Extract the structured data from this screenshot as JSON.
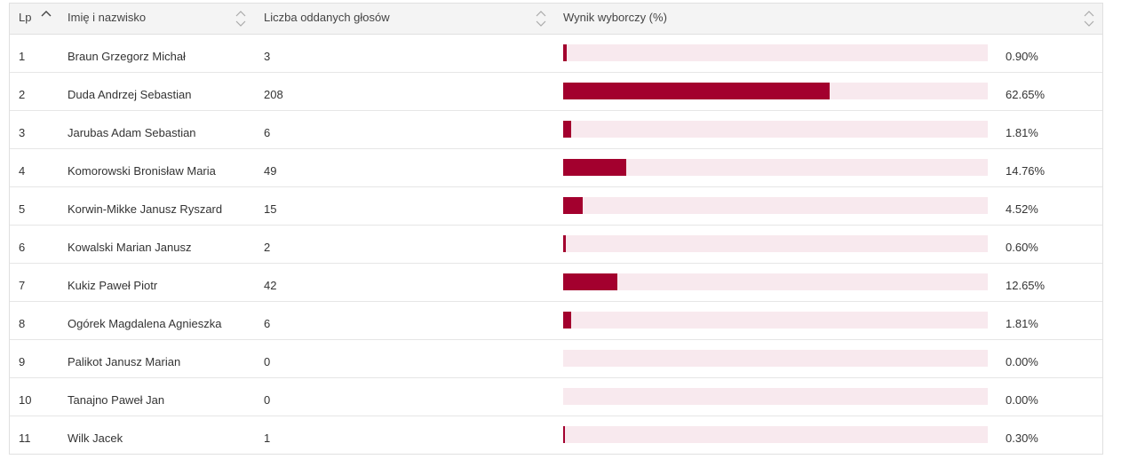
{
  "table": {
    "columns": {
      "lp": "Lp",
      "name": "Imię i nazwisko",
      "votes": "Liczba oddanych głosów",
      "result": "Wynik wyborczy (%)"
    },
    "sorted_column": "lp",
    "rows": [
      {
        "lp": "1",
        "name": "Braun Grzegorz Michał",
        "votes": "3",
        "percent_label": "0.90%",
        "percent": 0.9
      },
      {
        "lp": "2",
        "name": "Duda Andrzej Sebastian",
        "votes": "208",
        "percent_label": "62.65%",
        "percent": 62.65
      },
      {
        "lp": "3",
        "name": "Jarubas Adam Sebastian",
        "votes": "6",
        "percent_label": "1.81%",
        "percent": 1.81
      },
      {
        "lp": "4",
        "name": "Komorowski Bronisław Maria",
        "votes": "49",
        "percent_label": "14.76%",
        "percent": 14.76
      },
      {
        "lp": "5",
        "name": "Korwin-Mikke Janusz Ryszard",
        "votes": "15",
        "percent_label": "4.52%",
        "percent": 4.52
      },
      {
        "lp": "6",
        "name": "Kowalski Marian Janusz",
        "votes": "2",
        "percent_label": "0.60%",
        "percent": 0.6
      },
      {
        "lp": "7",
        "name": "Kukiz Paweł Piotr",
        "votes": "42",
        "percent_label": "12.65%",
        "percent": 12.65
      },
      {
        "lp": "8",
        "name": "Ogórek Magdalena Agnieszka",
        "votes": "6",
        "percent_label": "1.81%",
        "percent": 1.81
      },
      {
        "lp": "9",
        "name": "Palikot Janusz Marian",
        "votes": "0",
        "percent_label": "0.00%",
        "percent": 0.0
      },
      {
        "lp": "10",
        "name": "Tanajno Paweł Jan",
        "votes": "0",
        "percent_label": "0.00%",
        "percent": 0.0
      },
      {
        "lp": "11",
        "name": "Wilk Jacek",
        "votes": "1",
        "percent_label": "0.30%",
        "percent": 0.3
      }
    ]
  },
  "colors": {
    "bar_fill": "#a3002e",
    "bar_track": "#f8e9ee",
    "header_bg": "#f4f4f4"
  }
}
